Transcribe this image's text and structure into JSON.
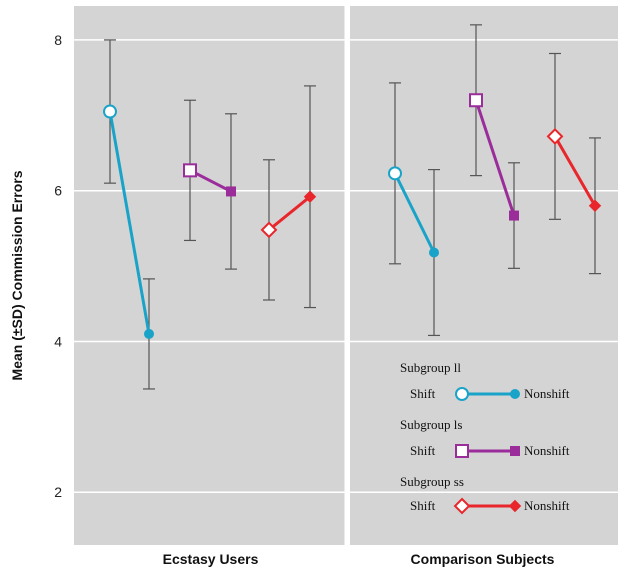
{
  "chart_data": {
    "type": "line",
    "ylabel": "Mean (±SD) Commission Errors",
    "ylim": [
      1.3,
      8.45
    ],
    "yticks": [
      2,
      4,
      6,
      8
    ],
    "groups": [
      "Ecstasy Users",
      "Comparison Subjects"
    ],
    "conditions": [
      "Shift",
      "Nonshift"
    ],
    "series": [
      {
        "name": "Subgroup ll",
        "color": "#1aa3c8",
        "marker_shift": "circle",
        "marker_nonshift": "dot",
        "values": {
          "Ecstasy Users": {
            "Shift": {
              "mean": 7.05,
              "sd": 0.95
            },
            "Nonshift": {
              "mean": 4.1,
              "sd": 0.73
            }
          },
          "Comparison Subjects": {
            "Shift": {
              "mean": 6.23,
              "sd": 1.2
            },
            "Nonshift": {
              "mean": 5.18,
              "sd": 1.1
            }
          }
        }
      },
      {
        "name": "Subgroup ls",
        "color": "#9b2d9b",
        "marker_shift": "square",
        "marker_nonshift": "filled-square",
        "values": {
          "Ecstasy Users": {
            "Shift": {
              "mean": 6.27,
              "sd": 0.93
            },
            "Nonshift": {
              "mean": 5.99,
              "sd": 1.03
            }
          },
          "Comparison Subjects": {
            "Shift": {
              "mean": 7.2,
              "sd": 1.0
            },
            "Nonshift": {
              "mean": 5.67,
              "sd": 0.7
            }
          }
        }
      },
      {
        "name": "Subgroup ss",
        "color": "#e8262b",
        "marker_shift": "diamond",
        "marker_nonshift": "filled-diamond",
        "values": {
          "Ecstasy Users": {
            "Shift": {
              "mean": 5.48,
              "sd": 0.93
            },
            "Nonshift": {
              "mean": 5.92,
              "sd": 1.47
            }
          },
          "Comparison Subjects": {
            "Shift": {
              "mean": 6.72,
              "sd": 1.1
            },
            "Nonshift": {
              "mean": 5.8,
              "sd": 0.9
            }
          }
        }
      }
    ],
    "legend": {
      "placement": "bottom-right",
      "entries": [
        {
          "title": "Subgroup ll",
          "left": "Shift",
          "right": "Nonshift"
        },
        {
          "title": "Subgroup ls",
          "left": "Shift",
          "right": "Nonshift"
        },
        {
          "title": "Subgroup ss",
          "left": "Shift",
          "right": "Nonshift"
        }
      ]
    },
    "colors": {
      "plot_background": "#d4d4d4",
      "gridline": "#ffffff",
      "error_bar": "#555555"
    },
    "grid": true
  }
}
